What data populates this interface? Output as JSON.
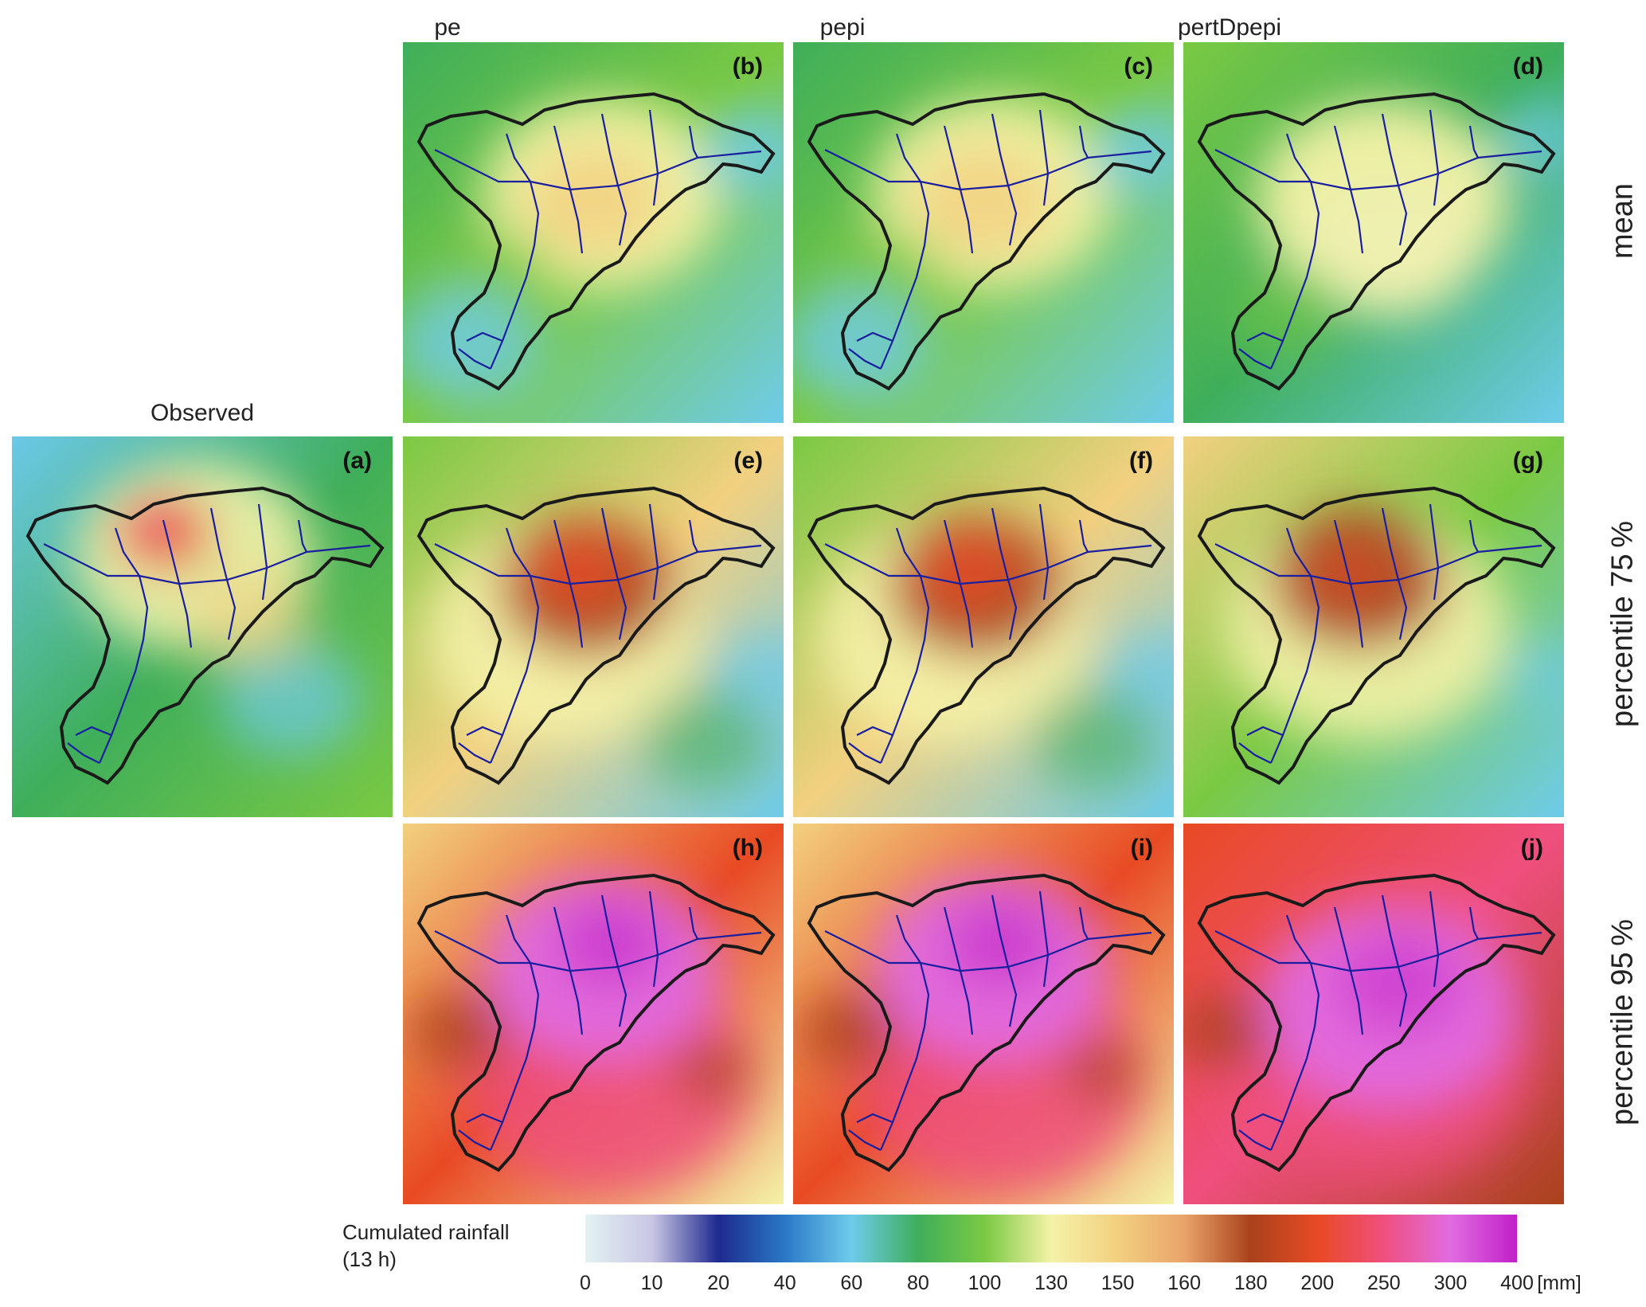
{
  "columns": [
    {
      "title": "pe"
    },
    {
      "title": "pepi"
    },
    {
      "title": "pertDpepi"
    }
  ],
  "observed_title": "Observed",
  "rows": [
    {
      "title": "mean"
    },
    {
      "title": "percentile 75 %"
    },
    {
      "title": "percentile 95 %"
    }
  ],
  "panels": [
    {
      "label": "(a)",
      "map": "observed"
    },
    {
      "label": "(b)",
      "map": "pe mean"
    },
    {
      "label": "(c)",
      "map": "pepi mean"
    },
    {
      "label": "(d)",
      "map": "pertDpepi mean"
    },
    {
      "label": "(e)",
      "map": "pe percentile 75%"
    },
    {
      "label": "(f)",
      "map": "pepi percentile 75%"
    },
    {
      "label": "(g)",
      "map": "pertDpepi percentile 75%"
    },
    {
      "label": "(h)",
      "map": "pe percentile 95%"
    },
    {
      "label": "(i)",
      "map": "pepi percentile 95%"
    },
    {
      "label": "(j)",
      "map": "pertDpepi percentile 95%"
    }
  ],
  "legend": {
    "title_line1": "Cumulated rainfall",
    "title_line2": "(13 h)",
    "ticks": [
      "0",
      "10",
      "20",
      "40",
      "60",
      "80",
      "100",
      "130",
      "150",
      "160",
      "180",
      "200",
      "250",
      "300",
      "400"
    ],
    "unit": "[mm]",
    "colors": [
      "#e4f2f2",
      "#c9c6e4",
      "#1e2a8e",
      "#2a78c6",
      "#6ecbea",
      "#3fae5a",
      "#7ac943",
      "#f4f2a8",
      "#f2d080",
      "#e9a36a",
      "#a9421c",
      "#e84a24",
      "#ef4f7e",
      "#e06ce0",
      "#c020c8"
    ]
  }
}
